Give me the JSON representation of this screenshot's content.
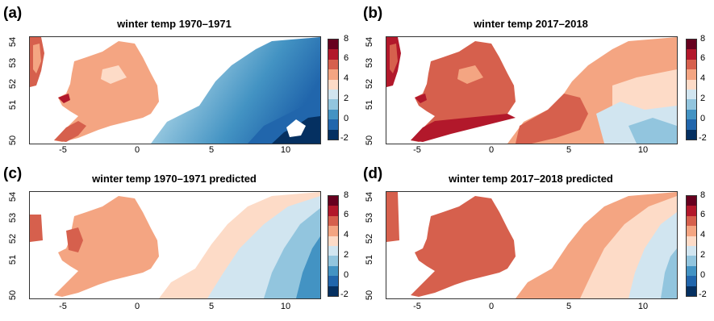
{
  "panels": [
    {
      "letter": "(a)",
      "title": "winter temp 1970–1971"
    },
    {
      "letter": "(b)",
      "title": "winter temp 2017–2018"
    },
    {
      "letter": "(c)",
      "title": "winter temp 1970–1971 predicted"
    },
    {
      "letter": "(d)",
      "title": "winter temp 2017–2018 predicted"
    }
  ],
  "x_ticks": [
    "-5",
    "0",
    "5",
    "10"
  ],
  "y_ticks": [
    "50",
    "51",
    "52",
    "53",
    "54"
  ],
  "colorbar_ticks": [
    "8",
    "6",
    "4",
    "2",
    "0",
    "-2"
  ],
  "colorbar_colors": [
    "#67001f",
    "#b2182b",
    "#d6604d",
    "#f4a582",
    "#fddbc7",
    "#d1e5f0",
    "#92c5de",
    "#4393c3",
    "#2166ac",
    "#053061"
  ]
}
